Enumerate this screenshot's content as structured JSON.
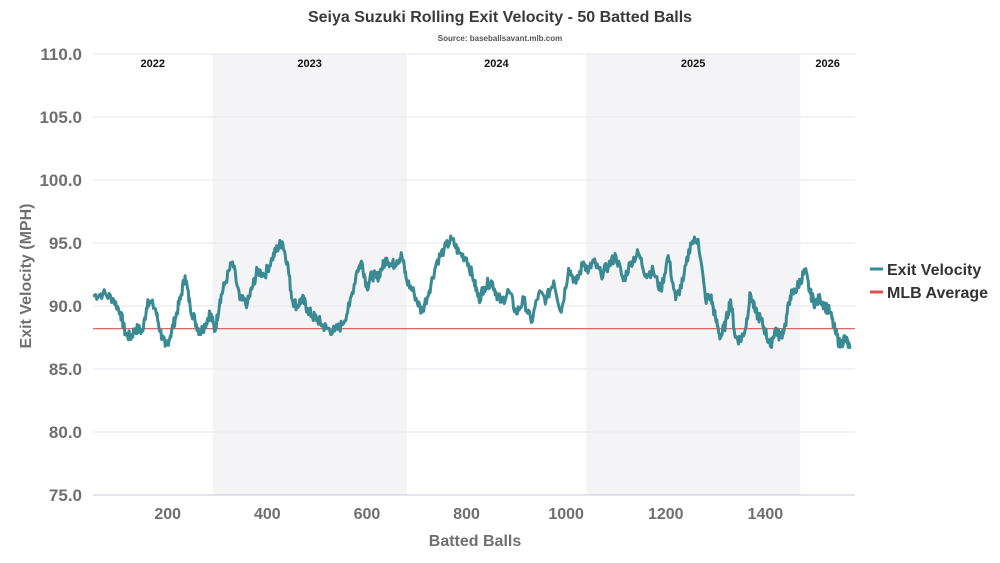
{
  "chart_data": {
    "type": "line",
    "title": "Seiya Suzuki Rolling Exit Velocity - 50 Batted Balls",
    "subtitle": "Source: baseballsavant.mlb.com",
    "xlabel": "Batted Balls",
    "ylabel": "Exit Velocity (MPH)",
    "xlim": [
      50,
      1580
    ],
    "ylim": [
      75,
      110
    ],
    "x_ticks": [
      200,
      400,
      600,
      800,
      1000,
      1200,
      1400
    ],
    "y_ticks": [
      75.0,
      80.0,
      85.0,
      90.0,
      95.0,
      100.0,
      105.0,
      110.0
    ],
    "y_tick_labels": [
      "75.0",
      "80.0",
      "85.0",
      "90.0",
      "95.0",
      "100.0",
      "105.0",
      "110.0"
    ],
    "grid": true,
    "legend_position": "right",
    "seasons": [
      {
        "label": "2022",
        "start": 50,
        "end": 290,
        "shaded": false
      },
      {
        "label": "2023",
        "start": 290,
        "end": 680,
        "shaded": true
      },
      {
        "label": "2024",
        "start": 680,
        "end": 1040,
        "shaded": false
      },
      {
        "label": "2025",
        "start": 1040,
        "end": 1470,
        "shaded": true
      },
      {
        "label": "2026",
        "start": 1470,
        "end": 1580,
        "shaded": false
      }
    ],
    "series": [
      {
        "name": "Exit Velocity",
        "color": "#3a8a94",
        "x": [
          50,
          70,
          90,
          105,
          115,
          125,
          135,
          150,
          160,
          175,
          185,
          195,
          205,
          215,
          225,
          235,
          245,
          255,
          265,
          275,
          285,
          295,
          305,
          315,
          330,
          345,
          360,
          370,
          380,
          395,
          410,
          420,
          430,
          440,
          450,
          460,
          470,
          480,
          490,
          500,
          510,
          520,
          535,
          550,
          565,
          580,
          590,
          600,
          610,
          620,
          630,
          640,
          650,
          660,
          670,
          680,
          695,
          710,
          725,
          740,
          755,
          770,
          785,
          800,
          815,
          825,
          835,
          850,
          860,
          870,
          885,
          900,
          915,
          930,
          945,
          960,
          975,
          990,
          1005,
          1020,
          1035,
          1045,
          1055,
          1070,
          1085,
          1100,
          1115,
          1130,
          1145,
          1160,
          1175,
          1190,
          1205,
          1220,
          1235,
          1250,
          1265,
          1280,
          1290,
          1300,
          1310,
          1320,
          1330,
          1340,
          1350,
          1360,
          1370,
          1380,
          1390,
          1400,
          1410,
          1420,
          1430,
          1440,
          1450,
          1460,
          1470,
          1480,
          1490,
          1500,
          1510,
          1520,
          1530,
          1540,
          1550,
          1560,
          1570
        ],
        "values": [
          90.8,
          91.0,
          90.6,
          89.5,
          87.8,
          87.5,
          88.2,
          88.0,
          90.5,
          89.8,
          88.0,
          86.8,
          87.6,
          89.0,
          90.5,
          92.4,
          90.0,
          88.8,
          87.9,
          88.5,
          89.5,
          88.0,
          90.5,
          91.8,
          93.5,
          90.5,
          90.2,
          91.5,
          92.8,
          92.5,
          93.8,
          94.6,
          95.1,
          93.5,
          90.5,
          90.0,
          90.6,
          89.8,
          89.2,
          89.0,
          88.5,
          88.2,
          88.0,
          88.5,
          90.0,
          92.8,
          93.5,
          91.5,
          92.5,
          92.2,
          93.0,
          93.8,
          93.2,
          93.6,
          94.0,
          92.0,
          91.0,
          89.5,
          91.2,
          93.5,
          94.5,
          95.3,
          94.2,
          93.8,
          92.0,
          90.5,
          91.5,
          92.0,
          91.0,
          90.3,
          91.2,
          89.4,
          90.5,
          88.7,
          91.0,
          90.5,
          92.0,
          89.5,
          93.0,
          91.8,
          93.5,
          92.8,
          93.5,
          92.5,
          93.2,
          94.0,
          92.0,
          93.5,
          94.2,
          92.5,
          92.8,
          91.2,
          94.0,
          90.5,
          92.0,
          95.0,
          95.3,
          90.5,
          90.8,
          89.0,
          87.5,
          88.6,
          90.5,
          87.5,
          87.3,
          88.2,
          91.0,
          89.5,
          89.0,
          88.0,
          86.8,
          88.2,
          87.5,
          88.5,
          90.8,
          91.2,
          92.0,
          92.8,
          91.0,
          90.2,
          90.6,
          90.0,
          89.5,
          88.0,
          86.9,
          87.5,
          86.6
        ]
      }
    ],
    "reference_line": {
      "name": "MLB Average",
      "value": 88.2,
      "color": "#d9534f"
    }
  }
}
